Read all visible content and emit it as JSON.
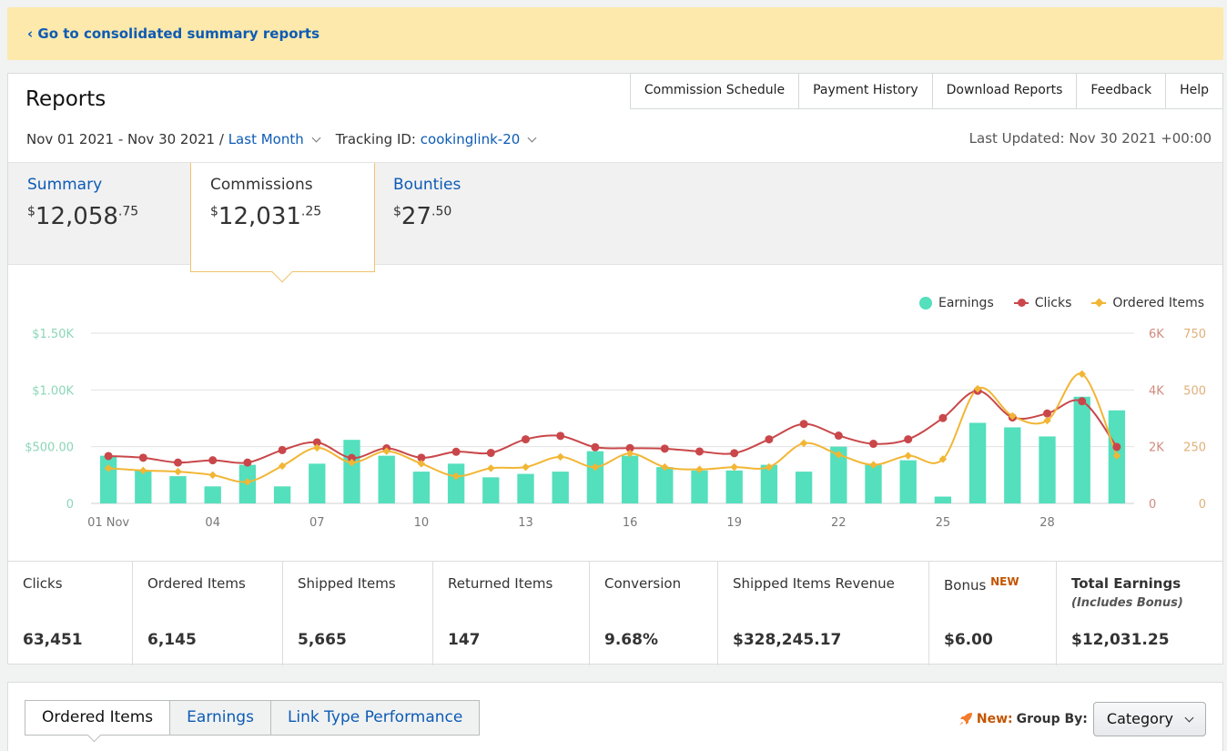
{
  "banner": {
    "link": "‹ Go to consolidated summary reports"
  },
  "header": {
    "title": "Reports",
    "nav": [
      "Commission Schedule",
      "Payment History",
      "Download Reports",
      "Feedback",
      "Help"
    ],
    "date_range": "Nov 01 2021 - Nov 30 2021 /",
    "period": "Last Month",
    "tracking_label": "Tracking ID:",
    "tracking_id": "cookinglink-20",
    "last_updated": "Last Updated: Nov 30 2021 +00:00"
  },
  "summary_tabs": [
    {
      "label": "Summary",
      "cur": "$",
      "whole": "12,058",
      "cents": ".75"
    },
    {
      "label": "Commissions",
      "cur": "$",
      "whole": "12,031",
      "cents": ".25"
    },
    {
      "label": "Bounties",
      "cur": "$",
      "whole": "27",
      "cents": ".50"
    }
  ],
  "legend": [
    "Earnings",
    "Clicks",
    "Ordered Items"
  ],
  "colors": {
    "earnings": "#54dfbd",
    "clicks": "#c9474a",
    "ordered": "#f2b635",
    "link": "#0d5bb5"
  },
  "chart_data": {
    "type": "bar",
    "x": [
      "01 Nov",
      "02",
      "03",
      "04",
      "05",
      "06",
      "07",
      "08",
      "09",
      "10",
      "11",
      "12",
      "13",
      "14",
      "15",
      "16",
      "17",
      "18",
      "19",
      "20",
      "21",
      "22",
      "23",
      "24",
      "25",
      "26",
      "27",
      "28",
      "29",
      "30"
    ],
    "x_tick_labels": [
      "01 Nov",
      "04",
      "07",
      "10",
      "13",
      "16",
      "19",
      "22",
      "25",
      "28"
    ],
    "series": [
      {
        "name": "Earnings",
        "type": "bar",
        "axis": "left",
        "values": [
          420,
          290,
          240,
          150,
          340,
          150,
          350,
          560,
          420,
          280,
          350,
          230,
          260,
          280,
          460,
          420,
          320,
          290,
          290,
          340,
          280,
          500,
          340,
          380,
          60,
          710,
          670,
          590,
          940,
          820
        ]
      },
      {
        "name": "Clicks",
        "type": "line",
        "axis": "right1",
        "values": [
          1670,
          1610,
          1440,
          1520,
          1440,
          1880,
          2150,
          1600,
          1940,
          1610,
          1820,
          1780,
          2260,
          2380,
          1980,
          1950,
          1930,
          1830,
          1770,
          2260,
          2800,
          2390,
          2100,
          2260,
          3010,
          3970,
          3030,
          3170,
          3600,
          1990
        ]
      },
      {
        "name": "Ordered Items",
        "type": "line",
        "axis": "right2",
        "values": [
          155,
          145,
          140,
          125,
          95,
          165,
          245,
          180,
          230,
          175,
          120,
          155,
          160,
          205,
          160,
          220,
          160,
          150,
          160,
          160,
          265,
          215,
          170,
          210,
          195,
          505,
          385,
          365,
          570,
          210
        ]
      }
    ],
    "y_left": {
      "ticks": [
        "0",
        "$500.00",
        "$1.00K",
        "$1.50K"
      ],
      "ylim": [
        0,
        1500
      ]
    },
    "y_right1": {
      "ticks": [
        "0",
        "2K",
        "4K",
        "6K"
      ],
      "ylim": [
        0,
        6000
      ]
    },
    "y_right2": {
      "ticks": [
        "0",
        "250",
        "500",
        "750"
      ],
      "ylim": [
        0,
        750
      ]
    }
  },
  "stats": [
    {
      "label": "Clicks",
      "value": "63,451"
    },
    {
      "label": "Ordered Items",
      "value": "6,145"
    },
    {
      "label": "Shipped Items",
      "value": "5,665"
    },
    {
      "label": "Returned Items",
      "value": "147"
    },
    {
      "label": "Conversion",
      "value": "9.68%"
    },
    {
      "label": "Shipped Items Revenue",
      "value": "$328,245.17"
    },
    {
      "label": "Bonus",
      "badge": "NEW",
      "value": "$6.00"
    },
    {
      "label": "Total Earnings",
      "sub": "(Includes Bonus)",
      "value": "$12,031.25"
    }
  ],
  "bottom": {
    "tabs": [
      "Ordered Items",
      "Earnings",
      "Link Type Performance"
    ],
    "new_label": "New:",
    "group_by_label": "Group By:",
    "group_by_value": "Category"
  }
}
